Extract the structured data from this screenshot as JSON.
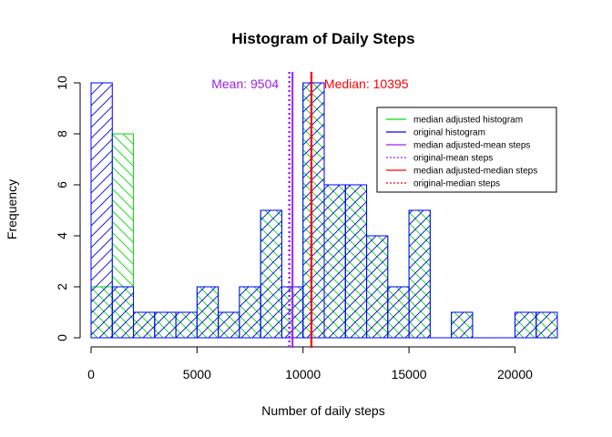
{
  "chart_data": {
    "type": "histogram",
    "title": "Histogram of Daily Steps",
    "xlabel": "Number of daily steps",
    "ylabel": "Frequency",
    "xlim": [
      0,
      22000
    ],
    "ylim": [
      0,
      10
    ],
    "x_ticks": [
      0,
      5000,
      10000,
      15000,
      20000
    ],
    "y_ticks": [
      0,
      2,
      4,
      6,
      8,
      10
    ],
    "bin_width": 1000,
    "bin_starts": [
      0,
      1000,
      2000,
      3000,
      4000,
      5000,
      6000,
      7000,
      8000,
      9000,
      10000,
      11000,
      12000,
      13000,
      14000,
      15000,
      16000,
      17000,
      18000,
      19000,
      20000,
      21000
    ],
    "series": [
      {
        "name": "median adjusted histogram",
        "color": "#00dd00",
        "hatch": "\\",
        "values": [
          2,
          8,
          1,
          1,
          1,
          2,
          1,
          2,
          5,
          2,
          10,
          6,
          6,
          4,
          2,
          5,
          0,
          1,
          0,
          0,
          1,
          1
        ]
      },
      {
        "name": "original histogram",
        "color": "#0000ff",
        "hatch": "/",
        "values": [
          10,
          2,
          1,
          1,
          1,
          2,
          1,
          2,
          5,
          2,
          10,
          6,
          6,
          4,
          2,
          5,
          0,
          1,
          0,
          0,
          1,
          1
        ]
      }
    ],
    "lines": [
      {
        "name": "median adjusted-mean steps",
        "color": "#a020f0",
        "style": "solid",
        "x": 9504
      },
      {
        "name": "original-mean steps",
        "color": "#a020f0",
        "style": "dotted",
        "x": 9354
      },
      {
        "name": "median adjusted-median steps",
        "color": "#ff0000",
        "style": "solid",
        "x": 10395
      },
      {
        "name": "original-median steps",
        "color": "#ff0000",
        "style": "dotted",
        "x": 10395
      }
    ],
    "annotations": [
      {
        "text": "Mean: 9504",
        "color": "#a020f0"
      },
      {
        "text": "Median: 10395",
        "color": "#ff0000"
      }
    ],
    "legend": {
      "position": "top-right",
      "entries": [
        {
          "label": "median adjusted histogram",
          "color": "#00dd00",
          "style": "solid"
        },
        {
          "label": "original histogram",
          "color": "#0000ff",
          "style": "solid"
        },
        {
          "label": "median adjusted-mean steps",
          "color": "#a020f0",
          "style": "solid"
        },
        {
          "label": "original-mean steps",
          "color": "#a020f0",
          "style": "dotted"
        },
        {
          "label": "median adjusted-median steps",
          "color": "#ff0000",
          "style": "solid"
        },
        {
          "label": "original-median steps",
          "color": "#ff0000",
          "style": "dotted"
        }
      ]
    }
  }
}
